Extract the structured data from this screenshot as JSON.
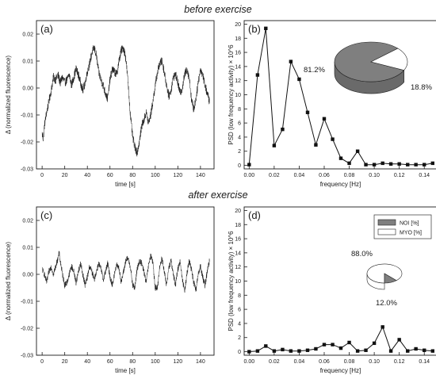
{
  "section_titles": [
    "before exercise",
    "after exercise"
  ],
  "chart_data": [
    {
      "type": "line",
      "label": "(a)",
      "xlabel": "time [s]",
      "ylabel": "Δ (normalized fluorescence)",
      "xlim": [
        -5,
        152
      ],
      "ylim": [
        -0.03,
        0.025
      ],
      "xticks": [
        0,
        20,
        40,
        60,
        80,
        100,
        120,
        140
      ],
      "yticks": [
        -0.03,
        -0.02,
        -0.01,
        0.0,
        0.01,
        0.02
      ],
      "ytick_labels": [
        "-0.03",
        "-0.02",
        "-0.01",
        "0.00",
        "0.01",
        "0.02"
      ],
      "noise": 0.0016,
      "x": [
        0,
        1,
        2,
        4,
        6,
        8,
        10,
        12,
        14,
        16,
        18,
        20,
        22,
        24,
        26,
        28,
        30,
        32,
        34,
        36,
        38,
        40,
        42,
        44,
        46,
        48,
        50,
        52,
        54,
        56,
        58,
        60,
        62,
        64,
        66,
        68,
        70,
        72,
        74,
        76,
        78,
        80,
        82,
        84,
        86,
        88,
        90,
        92,
        94,
        96,
        98,
        100,
        102,
        104,
        106,
        108,
        110,
        112,
        114,
        116,
        118,
        120,
        122,
        124,
        126,
        128,
        130,
        132,
        134,
        136,
        138,
        140,
        142,
        144,
        146,
        148
      ],
      "y": [
        -0.017,
        -0.019,
        -0.014,
        -0.009,
        -0.005,
        -0.001,
        0.004,
        0.003,
        0.005,
        0.002,
        0.004,
        0.002,
        0.003,
        0.005,
        0.001,
        0.004,
        0.007,
        0.005,
        0.002,
        -0.001,
        0.002,
        0.006,
        0.009,
        0.013,
        0.015,
        0.012,
        0.006,
        0.003,
        0.001,
        -0.002,
        -0.004,
        0.003,
        0.007,
        0.006,
        0.005,
        0.01,
        0.014,
        0.015,
        0.011,
        0.002,
        -0.01,
        -0.018,
        -0.022,
        -0.024,
        -0.02,
        -0.014,
        -0.012,
        -0.009,
        -0.013,
        -0.01,
        -0.005,
        0.001,
        0.006,
        0.009,
        0.01,
        0.006,
        0.001,
        -0.003,
        -0.001,
        0.004,
        0.005,
        0.002,
        -0.002,
        0.0,
        0.005,
        0.007,
        0.004,
        -0.004,
        -0.008,
        -0.004,
        0.002,
        0.007,
        0.005,
        0.001,
        -0.002,
        -0.005
      ]
    },
    {
      "type": "line",
      "label": "(b)",
      "xlabel": "frequency [Hz]",
      "ylabel": "PSD (low frequency activity) × 10^6",
      "xlim": [
        -0.004,
        0.15
      ],
      "ylim": [
        -0.5,
        20.5
      ],
      "xticks": [
        0.0,
        0.02,
        0.04,
        0.06,
        0.08,
        0.1,
        0.12,
        0.14
      ],
      "xtick_labels": [
        "0.00",
        "0.02",
        "0.04",
        "0.06",
        "0.08",
        "0.10",
        "0.12",
        "0.14"
      ],
      "yticks": [
        0,
        2,
        4,
        6,
        8,
        10,
        12,
        14,
        16,
        18,
        20
      ],
      "marker": "square",
      "x": [
        0.0,
        0.0067,
        0.0133,
        0.02,
        0.0267,
        0.0333,
        0.04,
        0.0467,
        0.0533,
        0.06,
        0.0667,
        0.0733,
        0.08,
        0.0867,
        0.0933,
        0.1,
        0.1067,
        0.1133,
        0.12,
        0.1267,
        0.1333,
        0.14,
        0.1467
      ],
      "y": [
        0.1,
        12.8,
        19.4,
        2.8,
        5.1,
        14.7,
        12.2,
        7.5,
        2.9,
        6.6,
        3.7,
        1.0,
        0.3,
        2.0,
        0.1,
        0.1,
        0.3,
        0.2,
        0.2,
        0.1,
        0.1,
        0.1,
        0.3
      ],
      "inset_pie": {
        "slices": [
          {
            "label": "81.2%",
            "value": 81.2,
            "color": "#7f7f7f"
          },
          {
            "label": "18.8%",
            "value": 18.8,
            "color": "#ffffff"
          }
        ]
      }
    },
    {
      "type": "line",
      "label": "(c)",
      "xlabel": "time [s]",
      "ylabel": "Δ (normalized fluorescence)",
      "xlim": [
        -5,
        152
      ],
      "ylim": [
        -0.03,
        0.025
      ],
      "xticks": [
        0,
        20,
        40,
        60,
        80,
        100,
        120,
        140
      ],
      "yticks": [
        -0.03,
        -0.02,
        -0.01,
        0.0,
        0.01,
        0.02
      ],
      "ytick_labels": [
        "-0.03",
        "-0.02",
        "-0.01",
        "0.00",
        "0.01",
        "0.02"
      ],
      "noise": 0.0012,
      "x": [
        0,
        2,
        4,
        6,
        8,
        10,
        12,
        14,
        15,
        16,
        18,
        20,
        22,
        24,
        26,
        28,
        30,
        32,
        34,
        36,
        38,
        40,
        42,
        44,
        46,
        48,
        50,
        52,
        54,
        56,
        58,
        60,
        62,
        64,
        66,
        68,
        70,
        72,
        74,
        76,
        78,
        80,
        82,
        84,
        86,
        88,
        90,
        92,
        94,
        96,
        98,
        100,
        102,
        104,
        106,
        108,
        110,
        112,
        114,
        116,
        118,
        120,
        122,
        124,
        126,
        128,
        130,
        132,
        134,
        136,
        138,
        140,
        142,
        144,
        146,
        148
      ],
      "y": [
        0.002,
        0.0,
        -0.003,
        0.001,
        0.003,
        0.0,
        0.003,
        0.006,
        0.008,
        0.005,
        0.0,
        -0.004,
        -0.003,
        0.0,
        0.003,
        0.001,
        -0.003,
        0.001,
        0.004,
        0.0,
        -0.004,
        -0.001,
        0.003,
        0.001,
        -0.002,
        0.001,
        0.004,
        0.002,
        -0.002,
        0.001,
        0.004,
        -0.001,
        -0.004,
        0.0,
        0.004,
        0.002,
        -0.003,
        0.001,
        0.005,
        0.006,
        0.003,
        -0.004,
        -0.005,
        0.002,
        0.005,
        0.004,
        0.001,
        -0.003,
        0.003,
        0.007,
        0.004,
        -0.005,
        -0.005,
        0.003,
        0.006,
        0.001,
        -0.004,
        0.002,
        0.005,
        0.0,
        -0.004,
        0.002,
        0.005,
        -0.002,
        -0.006,
        0.0,
        0.005,
        0.002,
        -0.003,
        -0.006,
        0.0,
        0.003,
        -0.001,
        -0.004,
        0.001,
        0.005
      ]
    },
    {
      "type": "line",
      "label": "(d)",
      "xlabel": "frequency [Hz]",
      "ylabel": "PSD (low frequency activity) × 10^6",
      "xlim": [
        -0.004,
        0.15
      ],
      "ylim": [
        -0.5,
        20.5
      ],
      "xticks": [
        0.0,
        0.02,
        0.04,
        0.06,
        0.08,
        0.1,
        0.12,
        0.14
      ],
      "xtick_labels": [
        "0.00",
        "0.02",
        "0.04",
        "0.06",
        "0.08",
        "0.10",
        "0.12",
        "0.14"
      ],
      "yticks": [
        0,
        2,
        4,
        6,
        8,
        10,
        12,
        14,
        16,
        18,
        20
      ],
      "marker": "square",
      "x": [
        0.0,
        0.0067,
        0.0133,
        0.02,
        0.0267,
        0.0333,
        0.04,
        0.0467,
        0.0533,
        0.06,
        0.0667,
        0.0733,
        0.08,
        0.0867,
        0.0933,
        0.1,
        0.1067,
        0.1133,
        0.12,
        0.1267,
        0.1333,
        0.14,
        0.1467
      ],
      "y": [
        0.0,
        0.1,
        0.8,
        0.1,
        0.3,
        0.1,
        0.1,
        0.2,
        0.4,
        1.0,
        1.0,
        0.5,
        1.3,
        0.1,
        0.2,
        1.2,
        3.5,
        0.1,
        1.7,
        0.1,
        0.4,
        0.2,
        0.1
      ],
      "legend": {
        "entries": [
          {
            "name": "NOI [%]",
            "color": "#7f7f7f"
          },
          {
            "name": "MYO [%]",
            "color": "#ffffff"
          }
        ]
      },
      "inset_pie": {
        "slices": [
          {
            "label": "88.0%",
            "value": 88.0,
            "color": "#ffffff"
          },
          {
            "label": "12.0%",
            "value": 12.0,
            "color": "#7f7f7f"
          }
        ]
      }
    }
  ]
}
